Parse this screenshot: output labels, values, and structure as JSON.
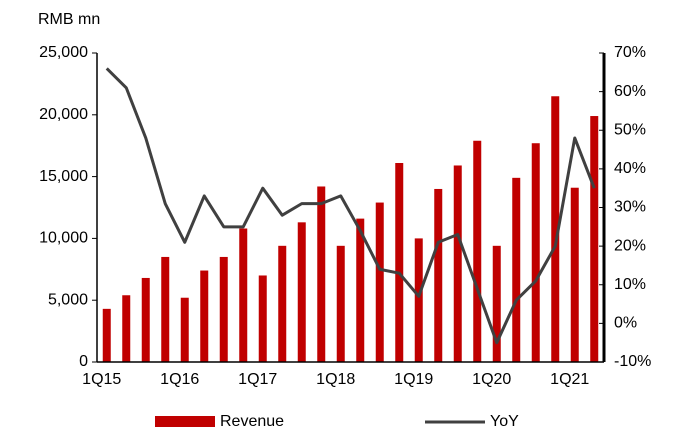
{
  "chart_data": {
    "type": "bar_line",
    "y_unit_label": "RMB mn",
    "categories": [
      "1Q15",
      null,
      null,
      null,
      "1Q16",
      null,
      null,
      null,
      "1Q17",
      null,
      null,
      null,
      "1Q18",
      null,
      null,
      null,
      "1Q19",
      null,
      null,
      null,
      "1Q20",
      null,
      null,
      null,
      "1Q21",
      null
    ],
    "series": [
      {
        "name": "Revenue",
        "type": "bar",
        "color": "#c00000",
        "values": [
          4300,
          5400,
          6800,
          8500,
          5200,
          7400,
          8500,
          10800,
          7000,
          9400,
          11300,
          14200,
          9400,
          11600,
          12900,
          16100,
          10000,
          14000,
          15900,
          17900,
          9400,
          14900,
          17700,
          21500,
          14100,
          19900
        ]
      },
      {
        "name": "YoY",
        "type": "line",
        "axis": "y2",
        "color": "#404040",
        "values": [
          66,
          61,
          48,
          31,
          21,
          33,
          25,
          25,
          35,
          28,
          31,
          31,
          33,
          24,
          14,
          13,
          7,
          21,
          23,
          9,
          -5,
          6,
          11,
          20,
          48,
          35
        ]
      }
    ],
    "ylim": [
      0,
      25000
    ],
    "yticks": [
      0,
      {
        "value": 5000,
        "label": "5,000"
      },
      {
        "value": 10000,
        "label": "10,000"
      },
      {
        "value": 15000,
        "label": "15,000"
      },
      {
        "value": 20000,
        "label": "20,000"
      },
      {
        "value": 25000,
        "label": "25,000"
      }
    ],
    "y2lim": [
      -10,
      70
    ],
    "y2ticks": [
      {
        "value": -10,
        "label": "-10%"
      },
      {
        "value": 0,
        "label": "0%"
      },
      {
        "value": 10,
        "label": "10%"
      },
      {
        "value": 20,
        "label": "20%"
      },
      {
        "value": 30,
        "label": "30%"
      },
      {
        "value": 40,
        "label": "40%"
      },
      {
        "value": 50,
        "label": "50%"
      },
      {
        "value": 60,
        "label": "60%"
      },
      {
        "value": 70,
        "label": "70%"
      }
    ],
    "legend": "bottom"
  }
}
